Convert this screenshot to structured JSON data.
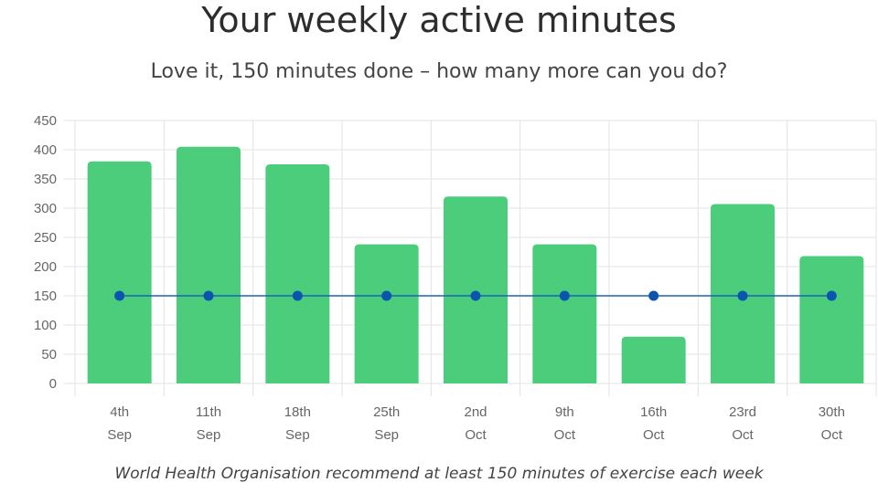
{
  "header": {
    "title": "Your weekly active minutes",
    "subtitle": "Love it, 150 minutes done – how many more can you do?"
  },
  "footer": {
    "note": "World Health Organisation recommend at least 150 minutes of exercise each week"
  },
  "colors": {
    "bar": "#4bcd7b",
    "line": "#1a64b4",
    "point": "#0b55b0",
    "grid": "#e3e3e3"
  },
  "chart_data": {
    "type": "bar",
    "categories": [
      [
        "4th",
        "Sep"
      ],
      [
        "11th",
        "Sep"
      ],
      [
        "18th",
        "Sep"
      ],
      [
        "25th",
        "Sep"
      ],
      [
        "2nd",
        "Oct"
      ],
      [
        "9th",
        "Oct"
      ],
      [
        "16th",
        "Oct"
      ],
      [
        "23rd",
        "Oct"
      ],
      [
        "30th",
        "Oct"
      ]
    ],
    "series": [
      {
        "values": [
          380,
          405,
          375,
          238,
          320,
          238,
          80,
          307,
          218
        ],
        "kind": "bar"
      },
      {
        "values": [
          150,
          150,
          150,
          150,
          150,
          150,
          150,
          150,
          150
        ],
        "kind": "line"
      }
    ],
    "ylim": [
      0,
      450
    ],
    "yticks": [
      0,
      50,
      100,
      150,
      200,
      250,
      300,
      350,
      400,
      450
    ],
    "grid": true,
    "title": "Your weekly active minutes",
    "xlabel": "",
    "ylabel": ""
  }
}
